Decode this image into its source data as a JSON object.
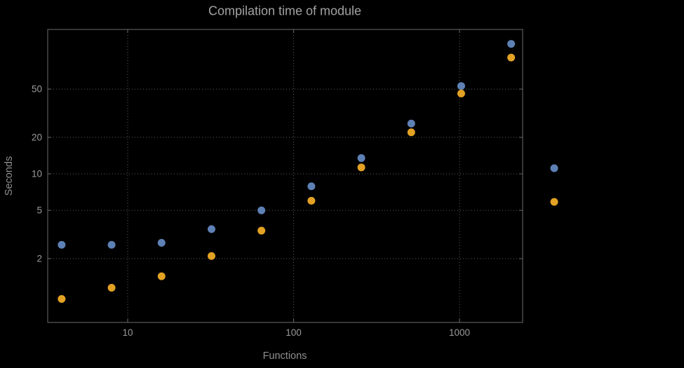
{
  "chart_data": {
    "type": "scatter",
    "title": "Compilation time of module",
    "xlabel": "Functions",
    "ylabel": "Seconds",
    "x_scale": "log",
    "y_scale": "log",
    "xlim": [
      3.2,
      2450
    ],
    "ylim": [
      0.55,
      155
    ],
    "x_ticks": [
      10,
      100,
      1000
    ],
    "y_ticks": [
      2,
      5,
      10,
      20,
      50
    ],
    "grid": "dotted",
    "background_color": "#000000",
    "text_color": "#9a9a9a",
    "x": [
      4,
      8,
      16,
      32,
      64,
      128,
      256,
      512,
      1024,
      2048
    ],
    "series": [
      {
        "name": "series-1-blue",
        "color": "#5e81b5",
        "values": [
          2.6,
          2.6,
          2.7,
          3.5,
          5.0,
          7.9,
          13.5,
          26,
          53,
          118
        ]
      },
      {
        "name": "series-2-orange",
        "color": "#e3a224",
        "values": [
          0.93,
          1.15,
          1.43,
          2.1,
          3.4,
          6.0,
          11.3,
          22,
          46,
          91
        ]
      }
    ],
    "legend": {
      "position": "right-outside",
      "labels_visible": false,
      "markers": [
        {
          "color": "#5e81b5"
        },
        {
          "color": "#e3a224"
        }
      ]
    }
  }
}
